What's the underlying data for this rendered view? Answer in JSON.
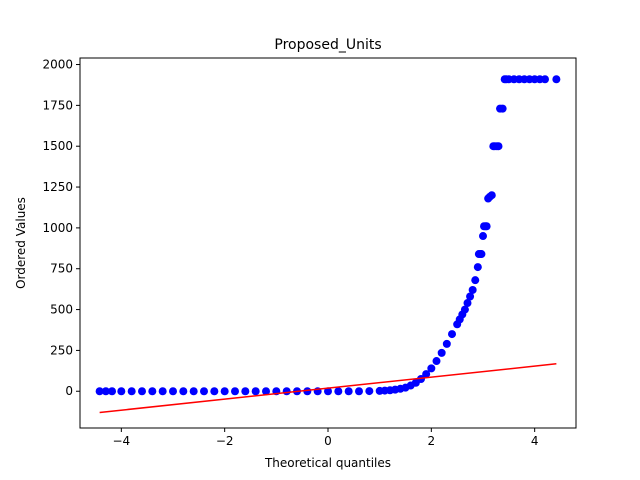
{
  "chart_data": {
    "type": "scatter",
    "title": "Proposed_Units",
    "xlabel": "Theoretical quantiles",
    "ylabel": "Ordered Values",
    "xlim": [
      -4.8,
      4.8
    ],
    "ylim": [
      -225,
      2040
    ],
    "xticks": [
      -4,
      -2,
      0,
      2,
      4
    ],
    "xtick_labels": [
      "−4",
      "−2",
      "0",
      "2",
      "4"
    ],
    "yticks": [
      0,
      250,
      500,
      750,
      1000,
      1250,
      1500,
      1750,
      2000
    ],
    "ytick_labels": [
      "0",
      "250",
      "500",
      "750",
      "1000",
      "1250",
      "1500",
      "1750",
      "2000"
    ],
    "grid": false,
    "marker_color": "#0000ff",
    "fit_line_color": "#ff0000",
    "fit_line": {
      "x": [
        -4.42,
        4.42
      ],
      "y": [
        -130,
        168
      ]
    },
    "series": [
      {
        "x": [
          -4.42,
          -4.3,
          -4.18,
          -4.0,
          -3.8,
          -3.6,
          -3.4,
          -3.2,
          -3.0,
          -2.8,
          -2.6,
          -2.4,
          -2.2,
          -2.0,
          -1.8,
          -1.6,
          -1.4,
          -1.2,
          -1.0,
          -0.8,
          -0.6,
          -0.4,
          -0.2,
          0.0,
          0.2,
          0.4,
          0.6,
          0.8,
          1.0,
          1.1,
          1.2,
          1.3,
          1.4,
          1.5,
          1.6,
          1.7,
          1.8,
          1.9,
          2.0,
          2.1,
          2.2,
          2.3,
          2.4,
          2.5,
          2.55,
          2.6,
          2.65,
          2.7,
          2.75,
          2.8,
          2.85,
          2.9,
          2.92,
          2.95,
          2.97,
          3.0,
          3.02,
          3.05,
          3.07,
          3.1,
          3.13,
          3.17,
          3.2,
          3.23,
          3.27,
          3.3,
          3.33,
          3.38,
          3.42,
          3.45,
          3.5,
          3.6,
          3.7,
          3.8,
          3.9,
          4.0,
          4.1,
          4.2,
          4.42
        ],
        "y": [
          0,
          0,
          0,
          0,
          0,
          0,
          0,
          0,
          0,
          0,
          0,
          0,
          0,
          0,
          0,
          0,
          0,
          0,
          0,
          0,
          0,
          0,
          0,
          0,
          0,
          0,
          0,
          1,
          2,
          4,
          6,
          10,
          15,
          22,
          35,
          52,
          75,
          105,
          140,
          185,
          235,
          290,
          350,
          410,
          440,
          470,
          500,
          540,
          580,
          620,
          680,
          760,
          840,
          840,
          840,
          950,
          1010,
          1010,
          1010,
          1180,
          1190,
          1200,
          1500,
          1500,
          1500,
          1500,
          1730,
          1730,
          1910,
          1910,
          1910,
          1910,
          1910,
          1910,
          1910,
          1910,
          1910,
          1910,
          1910
        ]
      }
    ]
  }
}
